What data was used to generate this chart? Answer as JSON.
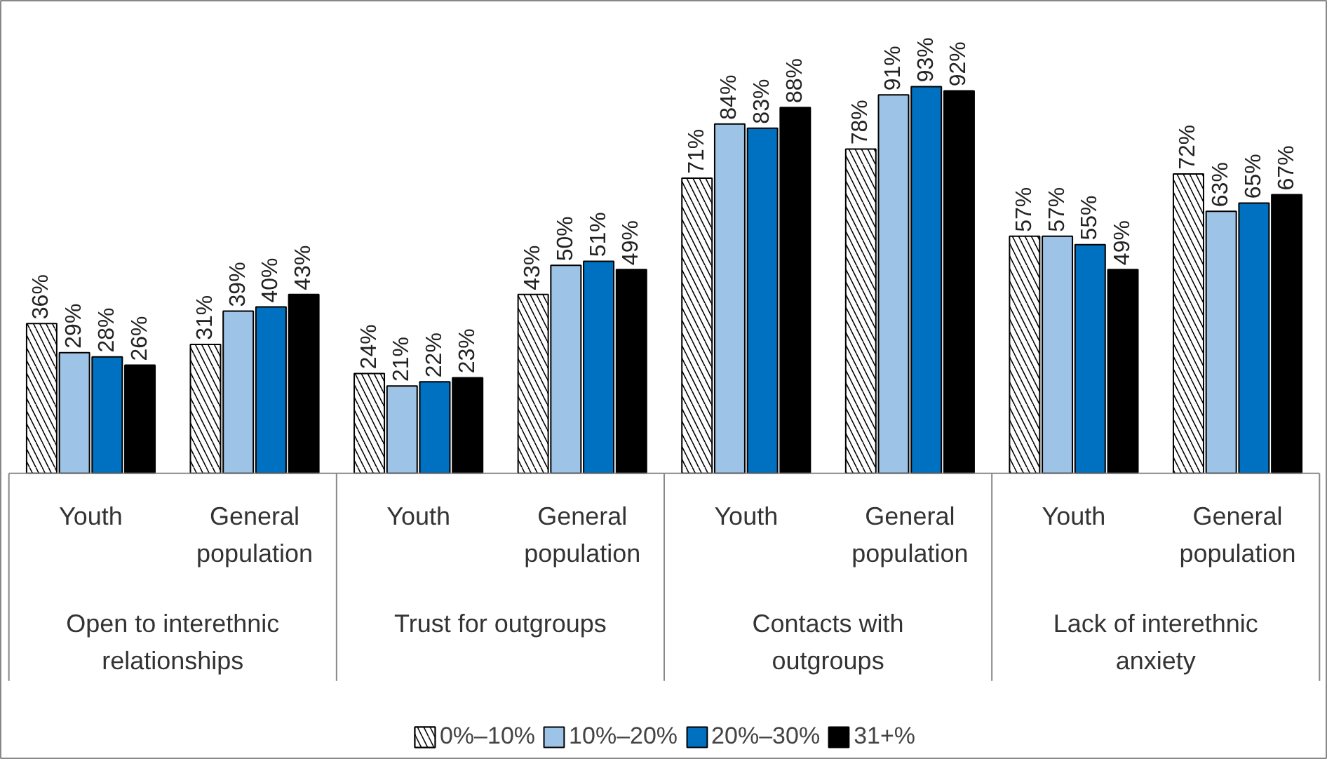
{
  "chart_data": {
    "type": "bar",
    "categories": [
      "Youth",
      "General population",
      "Youth",
      "General population",
      "Youth",
      "General population",
      "Youth",
      "General population"
    ],
    "annotations": [
      "Open to interethnic relationships",
      "Trust for outgroups",
      "Contacts with outgroups",
      "Lack of interethnic anxiety"
    ],
    "series": [
      {
        "name": "0%–10%",
        "color": "#ffffff",
        "values": [
          36,
          31,
          24,
          43,
          71,
          78,
          57,
          72
        ],
        "value_labels": [
          "36%",
          "31%",
          "24%",
          "43%",
          "71%",
          "78%",
          "57%",
          "72%"
        ]
      },
      {
        "name": "10%–20%",
        "color": "#9dc3e6",
        "values": [
          29,
          39,
          21,
          50,
          84,
          91,
          57,
          63
        ],
        "value_labels": [
          "29%",
          "39%",
          "21%",
          "50%",
          "84%",
          "91%",
          "57%",
          "63%"
        ]
      },
      {
        "name": "20%–30%",
        "color": "#0070c0",
        "values": [
          28,
          40,
          22,
          51,
          83,
          93,
          55,
          65
        ],
        "value_labels": [
          "28%",
          "40%",
          "22%",
          "51%",
          "83%",
          "93%",
          "55%",
          "65%"
        ]
      },
      {
        "name": "31+%",
        "color": "#000000",
        "values": [
          26,
          43,
          23,
          49,
          88,
          92,
          49,
          67
        ],
        "value_labels": [
          "26%",
          "43%",
          "23%",
          "49%",
          "88%",
          "92%",
          "49%",
          "67%"
        ]
      }
    ],
    "grid": false,
    "legend": "bottom"
  }
}
